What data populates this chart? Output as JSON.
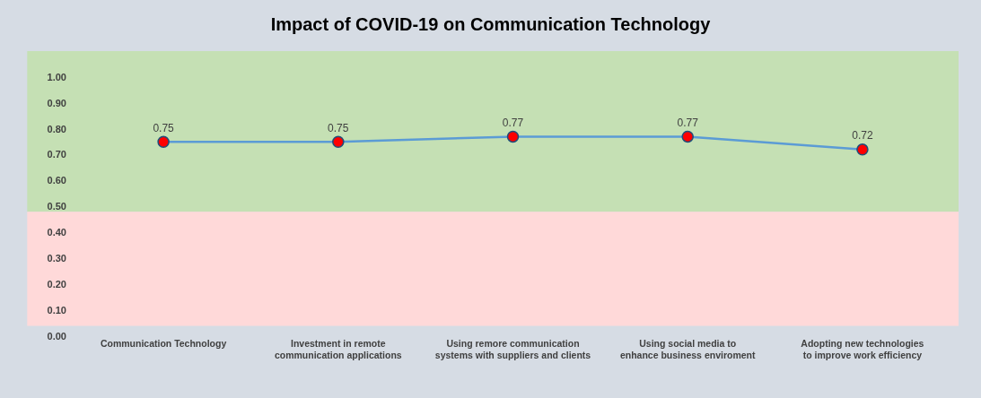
{
  "chart_data": {
    "type": "line",
    "title": "Impact of COVID-19 on Communication Technology",
    "categories": [
      "Communication Technology",
      "Investment in remote communication applications",
      "Using remore communication systems with suppliers and clients",
      "Using social media to enhance business enviroment",
      "Adopting new technologies to improve work efficiency"
    ],
    "series": [
      {
        "color": "#5b9bd5",
        "values": [
          0.75,
          0.75,
          0.77,
          0.77,
          0.72
        ]
      }
    ],
    "data_labels": true,
    "marker": "circle",
    "line_style": "solid",
    "grid": false,
    "ylim": [
      0,
      1.1
    ],
    "yticks": [
      {
        "value": 0,
        "label": "0.00"
      },
      {
        "value": 0.1,
        "label": "0.10"
      },
      {
        "value": 0.2,
        "label": "0.20"
      },
      {
        "value": 0.3,
        "label": "0.30"
      },
      {
        "value": 0.4,
        "label": "0.40"
      },
      {
        "value": 0.5,
        "label": "0.50"
      },
      {
        "value": 0.6,
        "label": "0.60"
      },
      {
        "value": 0.7,
        "label": "0.70"
      },
      {
        "value": 0.8,
        "label": "0.80"
      },
      {
        "value": 0.9,
        "label": "0.90"
      },
      {
        "value": 1.0,
        "label": "1.00"
      }
    ],
    "bands": [
      {
        "axis": "y",
        "from": 0.48,
        "to": 1.1,
        "color": "#c5e0b4"
      },
      {
        "axis": "y",
        "from": 0.04,
        "to": 0.48,
        "color": "#ffd9d9"
      }
    ]
  }
}
